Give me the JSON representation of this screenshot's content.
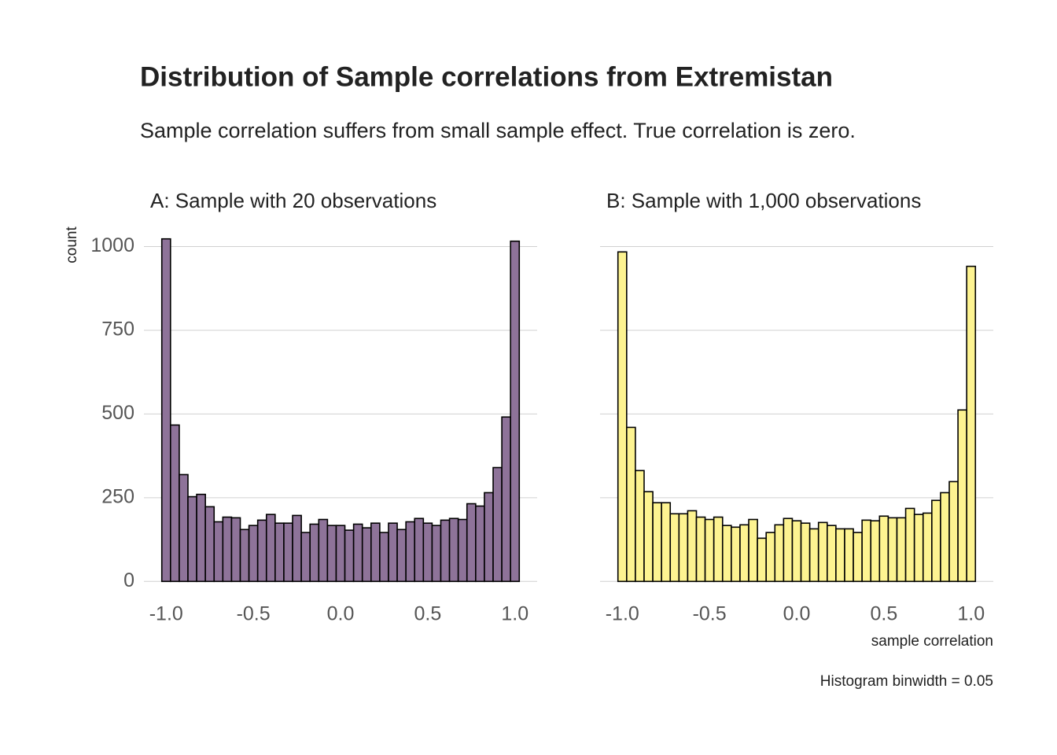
{
  "title": "Distribution of Sample correlations from Extremistan",
  "subtitle": "Sample correlation suffers from small sample effect. True correlation is zero.",
  "caption": "Histogram binwidth = 0.05",
  "chart_data": [
    {
      "type": "histogram",
      "title": "A: Sample with 20 observations",
      "ylabel": "count",
      "color": "#8e7399",
      "edgecolor": "#000000",
      "bins": [
        -1.025,
        -0.975,
        -0.925,
        -0.875,
        -0.825,
        -0.775,
        -0.725,
        -0.675,
        -0.625,
        -0.575,
        -0.525,
        -0.475,
        -0.425,
        -0.375,
        -0.325,
        -0.275,
        -0.225,
        -0.175,
        -0.125,
        -0.075,
        -0.025,
        0.025,
        0.075,
        0.125,
        0.175,
        0.225,
        0.275,
        0.325,
        0.375,
        0.425,
        0.475,
        0.525,
        0.575,
        0.625,
        0.675,
        0.725,
        0.775,
        0.825,
        0.875,
        0.925,
        0.975,
        1.025
      ],
      "values": [
        1023,
        467,
        319,
        253,
        260,
        223,
        178,
        192,
        190,
        155,
        167,
        183,
        200,
        174,
        174,
        197,
        146,
        171,
        185,
        167,
        167,
        153,
        171,
        160,
        174,
        146,
        174,
        155,
        178,
        188,
        174,
        167,
        183,
        188,
        185,
        232,
        225,
        265,
        340,
        491,
        1016
      ],
      "xlim": [
        -1.1275,
        1.1275
      ],
      "xticks": [
        {
          "value": -1,
          "label": "-1.0"
        },
        -0.5,
        {
          "value": 0,
          "label": "0.0"
        },
        0.5,
        {
          "value": 1,
          "label": "1.0"
        }
      ],
      "ylim": [
        -51,
        1074
      ],
      "yticks": [
        0,
        250,
        500,
        750,
        1000
      ],
      "show_ytick_labels": true,
      "grid": true
    },
    {
      "type": "histogram",
      "title": "B: Sample with 1,000 observations",
      "xlabel": "sample correlation",
      "color": "#fdf391",
      "edgecolor": "#000000",
      "bins": [
        -1.025,
        -0.975,
        -0.925,
        -0.875,
        -0.825,
        -0.775,
        -0.725,
        -0.675,
        -0.625,
        -0.575,
        -0.525,
        -0.475,
        -0.425,
        -0.375,
        -0.325,
        -0.275,
        -0.225,
        -0.175,
        -0.125,
        -0.075,
        -0.025,
        0.025,
        0.075,
        0.125,
        0.175,
        0.225,
        0.275,
        0.325,
        0.375,
        0.425,
        0.475,
        0.525,
        0.575,
        0.625,
        0.675,
        0.725,
        0.775,
        0.825,
        0.875,
        0.925,
        0.975,
        1.025
      ],
      "values": [
        984,
        460,
        331,
        268,
        235,
        235,
        202,
        202,
        211,
        192,
        185,
        192,
        167,
        162,
        169,
        185,
        129,
        146,
        169,
        188,
        181,
        174,
        157,
        176,
        167,
        157,
        157,
        146,
        183,
        181,
        195,
        190,
        190,
        218,
        200,
        204,
        242,
        265,
        298,
        512,
        941
      ],
      "xlim": [
        -1.1275,
        1.1275
      ],
      "xticks": [
        {
          "value": -1,
          "label": "-1.0"
        },
        -0.5,
        {
          "value": 0,
          "label": "0.0"
        },
        0.5,
        {
          "value": 1,
          "label": "1.0"
        }
      ],
      "ylim": [
        -51,
        1074
      ],
      "yticks": [
        0,
        250,
        500,
        750,
        1000
      ],
      "show_ytick_labels": false,
      "grid": true
    }
  ]
}
